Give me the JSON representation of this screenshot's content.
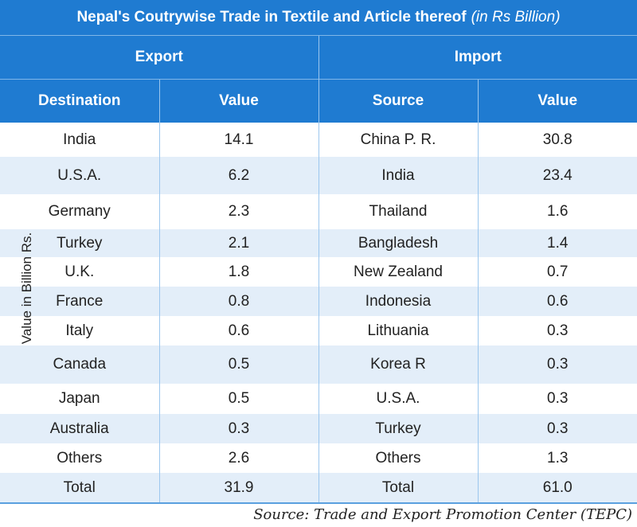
{
  "title": "Nepal's Coutrywise Trade in Textile and Article thereof",
  "title_unit": "(in Rs Billion)",
  "export_label": "Export",
  "import_label": "Import",
  "headers": {
    "destination": "Destination",
    "source": "Source",
    "value_export": "Value",
    "value_import": "Value"
  },
  "side_label": "Value in Billion Rs.",
  "source_note": "Source: Trade and Export Promotion Center (TEPC)",
  "chart_data": {
    "type": "table",
    "title": "Nepal's Coutrywise Trade in Textile and Article thereof (in Rs Billion)",
    "rows": [
      {
        "dest": "India",
        "exp": "14.1",
        "src": "China P. R.",
        "imp": "30.8",
        "h": 43
      },
      {
        "dest": "U.S.A.",
        "exp": "6.2",
        "src": "India",
        "imp": "23.4",
        "h": 47
      },
      {
        "dest": "Germany",
        "exp": "2.3",
        "src": "Thailand",
        "imp": "1.6",
        "h": 44
      },
      {
        "dest": "Turkey",
        "exp": "2.1",
        "src": "Bangladesh",
        "imp": "1.4",
        "h": 35
      },
      {
        "dest": "U.K.",
        "exp": "1.8",
        "src": "New Zealand",
        "imp": "0.7",
        "h": 37
      },
      {
        "dest": "France",
        "exp": "0.8",
        "src": "Indonesia",
        "imp": "0.6",
        "h": 37
      },
      {
        "dest": "Italy",
        "exp": "0.6",
        "src": "Lithuania",
        "imp": "0.3",
        "h": 37
      },
      {
        "dest": "Canada",
        "exp": "0.5",
        "src": "Korea R",
        "imp": "0.3",
        "h": 48
      },
      {
        "dest": "Japan",
        "exp": "0.5",
        "src": "U.S.A.",
        "imp": "0.3",
        "h": 38
      },
      {
        "dest": "Australia",
        "exp": "0.3",
        "src": "Turkey",
        "imp": "0.3",
        "h": 37
      },
      {
        "dest": "Others",
        "exp": "2.6",
        "src": "Others",
        "imp": "1.3",
        "h": 37
      },
      {
        "dest": "Total",
        "exp": "31.9",
        "src": "Total",
        "imp": "61.0",
        "h": 38
      }
    ]
  }
}
